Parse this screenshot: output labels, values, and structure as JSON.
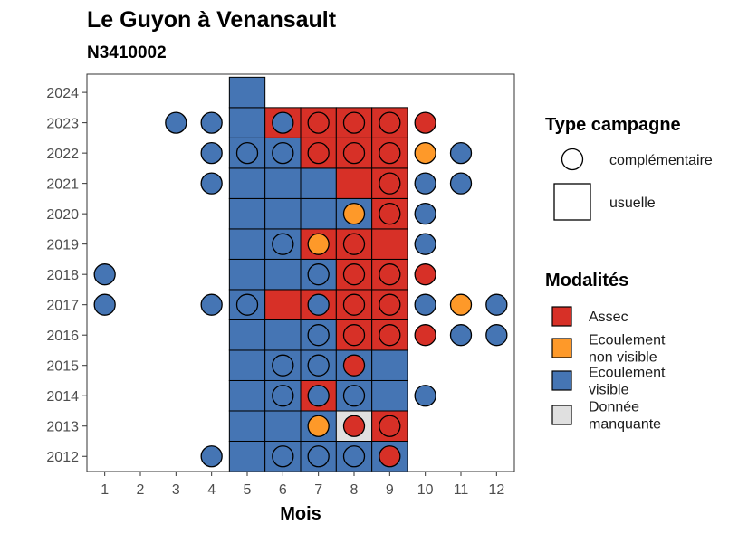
{
  "chart_data": {
    "type": "heatmap",
    "title": "Le Guyon à Venansault",
    "subtitle": "N3410002",
    "xlabel": "Mois",
    "ylabel": "",
    "x_ticks": [
      "1",
      "2",
      "3",
      "4",
      "5",
      "6",
      "7",
      "8",
      "9",
      "10",
      "11",
      "12"
    ],
    "y_ticks": [
      "2012",
      "2013",
      "2014",
      "2015",
      "2016",
      "2017",
      "2018",
      "2019",
      "2020",
      "2021",
      "2022",
      "2023",
      "2024"
    ],
    "xlim": [
      0.5,
      12.5
    ],
    "ylim": [
      2011.5,
      2024.6
    ],
    "colors": {
      "Assec": "#d73027",
      "Ecoulement non visible": "#fe9929",
      "Ecoulement visible": "#4575b4",
      "Donnée manquante": "#e0e0e0"
    },
    "legend_type": {
      "title": "Type campagne",
      "items": [
        {
          "shape": "circle",
          "label": "complémentaire"
        },
        {
          "shape": "square",
          "label": "usuelle"
        }
      ]
    },
    "legend_mod": {
      "title": "Modalités",
      "items": [
        {
          "key": "Assec",
          "lines": [
            "Assec"
          ]
        },
        {
          "key": "Ecoulement non visible",
          "lines": [
            "Ecoulement",
            "non visible"
          ]
        },
        {
          "key": "Ecoulement visible",
          "lines": [
            "Ecoulement",
            "visible"
          ]
        },
        {
          "key": "Donnée manquante",
          "lines": [
            "Donnée",
            "manquante"
          ]
        }
      ]
    },
    "usuelle": [
      {
        "year": 2012,
        "month": 5,
        "m": "Ecoulement visible"
      },
      {
        "year": 2012,
        "month": 6,
        "m": "Ecoulement visible"
      },
      {
        "year": 2012,
        "month": 7,
        "m": "Ecoulement visible"
      },
      {
        "year": 2012,
        "month": 8,
        "m": "Ecoulement visible"
      },
      {
        "year": 2012,
        "month": 9,
        "m": "Ecoulement visible"
      },
      {
        "year": 2013,
        "month": 5,
        "m": "Ecoulement visible"
      },
      {
        "year": 2013,
        "month": 6,
        "m": "Ecoulement visible"
      },
      {
        "year": 2013,
        "month": 7,
        "m": "Ecoulement visible"
      },
      {
        "year": 2013,
        "month": 8,
        "m": "Donnée manquante"
      },
      {
        "year": 2013,
        "month": 9,
        "m": "Assec"
      },
      {
        "year": 2014,
        "month": 5,
        "m": "Ecoulement visible"
      },
      {
        "year": 2014,
        "month": 6,
        "m": "Ecoulement visible"
      },
      {
        "year": 2014,
        "month": 7,
        "m": "Assec"
      },
      {
        "year": 2014,
        "month": 8,
        "m": "Ecoulement visible"
      },
      {
        "year": 2014,
        "month": 9,
        "m": "Ecoulement visible"
      },
      {
        "year": 2015,
        "month": 5,
        "m": "Ecoulement visible"
      },
      {
        "year": 2015,
        "month": 6,
        "m": "Ecoulement visible"
      },
      {
        "year": 2015,
        "month": 7,
        "m": "Ecoulement visible"
      },
      {
        "year": 2015,
        "month": 8,
        "m": "Ecoulement visible"
      },
      {
        "year": 2015,
        "month": 9,
        "m": "Ecoulement visible"
      },
      {
        "year": 2016,
        "month": 5,
        "m": "Ecoulement visible"
      },
      {
        "year": 2016,
        "month": 6,
        "m": "Ecoulement visible"
      },
      {
        "year": 2016,
        "month": 7,
        "m": "Ecoulement visible"
      },
      {
        "year": 2016,
        "month": 8,
        "m": "Assec"
      },
      {
        "year": 2016,
        "month": 9,
        "m": "Assec"
      },
      {
        "year": 2017,
        "month": 5,
        "m": "Ecoulement visible"
      },
      {
        "year": 2017,
        "month": 6,
        "m": "Assec"
      },
      {
        "year": 2017,
        "month": 7,
        "m": "Assec"
      },
      {
        "year": 2017,
        "month": 8,
        "m": "Assec"
      },
      {
        "year": 2017,
        "month": 9,
        "m": "Assec"
      },
      {
        "year": 2018,
        "month": 5,
        "m": "Ecoulement visible"
      },
      {
        "year": 2018,
        "month": 6,
        "m": "Ecoulement visible"
      },
      {
        "year": 2018,
        "month": 7,
        "m": "Ecoulement visible"
      },
      {
        "year": 2018,
        "month": 8,
        "m": "Assec"
      },
      {
        "year": 2018,
        "month": 9,
        "m": "Assec"
      },
      {
        "year": 2019,
        "month": 5,
        "m": "Ecoulement visible"
      },
      {
        "year": 2019,
        "month": 6,
        "m": "Ecoulement visible"
      },
      {
        "year": 2019,
        "month": 7,
        "m": "Assec"
      },
      {
        "year": 2019,
        "month": 8,
        "m": "Assec"
      },
      {
        "year": 2019,
        "month": 9,
        "m": "Assec"
      },
      {
        "year": 2020,
        "month": 5,
        "m": "Ecoulement visible"
      },
      {
        "year": 2020,
        "month": 6,
        "m": "Ecoulement visible"
      },
      {
        "year": 2020,
        "month": 7,
        "m": "Ecoulement visible"
      },
      {
        "year": 2020,
        "month": 8,
        "m": "Ecoulement visible"
      },
      {
        "year": 2020,
        "month": 9,
        "m": "Assec"
      },
      {
        "year": 2021,
        "month": 5,
        "m": "Ecoulement visible"
      },
      {
        "year": 2021,
        "month": 6,
        "m": "Ecoulement visible"
      },
      {
        "year": 2021,
        "month": 7,
        "m": "Ecoulement visible"
      },
      {
        "year": 2021,
        "month": 8,
        "m": "Assec"
      },
      {
        "year": 2021,
        "month": 9,
        "m": "Assec"
      },
      {
        "year": 2022,
        "month": 5,
        "m": "Ecoulement visible"
      },
      {
        "year": 2022,
        "month": 6,
        "m": "Ecoulement visible"
      },
      {
        "year": 2022,
        "month": 7,
        "m": "Assec"
      },
      {
        "year": 2022,
        "month": 8,
        "m": "Assec"
      },
      {
        "year": 2022,
        "month": 9,
        "m": "Assec"
      },
      {
        "year": 2023,
        "month": 5,
        "m": "Ecoulement visible"
      },
      {
        "year": 2023,
        "month": 6,
        "m": "Assec"
      },
      {
        "year": 2023,
        "month": 7,
        "m": "Assec"
      },
      {
        "year": 2023,
        "month": 8,
        "m": "Assec"
      },
      {
        "year": 2023,
        "month": 9,
        "m": "Assec"
      },
      {
        "year": 2024,
        "month": 5,
        "m": "Ecoulement visible"
      }
    ],
    "complementaire": [
      {
        "year": 2012,
        "month": 4,
        "m": "Ecoulement visible"
      },
      {
        "year": 2012,
        "month": 6,
        "m": "Ecoulement visible"
      },
      {
        "year": 2012,
        "month": 7,
        "m": "Ecoulement visible"
      },
      {
        "year": 2012,
        "month": 8,
        "m": "Ecoulement visible"
      },
      {
        "year": 2012,
        "month": 9,
        "m": "Assec"
      },
      {
        "year": 2013,
        "month": 7,
        "m": "Ecoulement non visible"
      },
      {
        "year": 2013,
        "month": 8,
        "m": "Assec"
      },
      {
        "year": 2013,
        "month": 9,
        "m": "Assec"
      },
      {
        "year": 2014,
        "month": 6,
        "m": "Ecoulement visible"
      },
      {
        "year": 2014,
        "month": 7,
        "m": "Ecoulement visible"
      },
      {
        "year": 2014,
        "month": 8,
        "m": "Ecoulement visible"
      },
      {
        "year": 2014,
        "month": 10,
        "m": "Ecoulement visible"
      },
      {
        "year": 2015,
        "month": 6,
        "m": "Ecoulement visible"
      },
      {
        "year": 2015,
        "month": 7,
        "m": "Ecoulement visible"
      },
      {
        "year": 2015,
        "month": 8,
        "m": "Assec"
      },
      {
        "year": 2016,
        "month": 7,
        "m": "Ecoulement visible"
      },
      {
        "year": 2016,
        "month": 8,
        "m": "Assec"
      },
      {
        "year": 2016,
        "month": 9,
        "m": "Assec"
      },
      {
        "year": 2016,
        "month": 10,
        "m": "Assec"
      },
      {
        "year": 2016,
        "month": 11,
        "m": "Ecoulement visible"
      },
      {
        "year": 2016,
        "month": 12,
        "m": "Ecoulement visible"
      },
      {
        "year": 2017,
        "month": 1,
        "m": "Ecoulement visible"
      },
      {
        "year": 2017,
        "month": 4,
        "m": "Ecoulement visible"
      },
      {
        "year": 2017,
        "month": 5,
        "m": "Ecoulement visible"
      },
      {
        "year": 2017,
        "month": 7,
        "m": "Ecoulement visible"
      },
      {
        "year": 2017,
        "month": 8,
        "m": "Assec"
      },
      {
        "year": 2017,
        "month": 9,
        "m": "Assec"
      },
      {
        "year": 2017,
        "month": 10,
        "m": "Ecoulement visible"
      },
      {
        "year": 2017,
        "month": 11,
        "m": "Ecoulement non visible"
      },
      {
        "year": 2017,
        "month": 12,
        "m": "Ecoulement visible"
      },
      {
        "year": 2018,
        "month": 1,
        "m": "Ecoulement visible"
      },
      {
        "year": 2018,
        "month": 7,
        "m": "Ecoulement visible"
      },
      {
        "year": 2018,
        "month": 8,
        "m": "Assec"
      },
      {
        "year": 2018,
        "month": 9,
        "m": "Assec"
      },
      {
        "year": 2018,
        "month": 10,
        "m": "Assec"
      },
      {
        "year": 2019,
        "month": 6,
        "m": "Ecoulement visible"
      },
      {
        "year": 2019,
        "month": 7,
        "m": "Ecoulement non visible"
      },
      {
        "year": 2019,
        "month": 8,
        "m": "Assec"
      },
      {
        "year": 2019,
        "month": 10,
        "m": "Ecoulement visible"
      },
      {
        "year": 2020,
        "month": 8,
        "m": "Ecoulement non visible"
      },
      {
        "year": 2020,
        "month": 9,
        "m": "Assec"
      },
      {
        "year": 2020,
        "month": 10,
        "m": "Ecoulement visible"
      },
      {
        "year": 2021,
        "month": 4,
        "m": "Ecoulement visible"
      },
      {
        "year": 2021,
        "month": 9,
        "m": "Assec"
      },
      {
        "year": 2021,
        "month": 10,
        "m": "Ecoulement visible"
      },
      {
        "year": 2021,
        "month": 11,
        "m": "Ecoulement visible"
      },
      {
        "year": 2022,
        "month": 4,
        "m": "Ecoulement visible"
      },
      {
        "year": 2022,
        "month": 5,
        "m": "Ecoulement visible"
      },
      {
        "year": 2022,
        "month": 6,
        "m": "Ecoulement visible"
      },
      {
        "year": 2022,
        "month": 7,
        "m": "Assec"
      },
      {
        "year": 2022,
        "month": 8,
        "m": "Assec"
      },
      {
        "year": 2022,
        "month": 9,
        "m": "Assec"
      },
      {
        "year": 2022,
        "month": 10,
        "m": "Ecoulement non visible"
      },
      {
        "year": 2022,
        "month": 11,
        "m": "Ecoulement visible"
      },
      {
        "year": 2023,
        "month": 3,
        "m": "Ecoulement visible"
      },
      {
        "year": 2023,
        "month": 4,
        "m": "Ecoulement visible"
      },
      {
        "year": 2023,
        "month": 6,
        "m": "Ecoulement visible"
      },
      {
        "year": 2023,
        "month": 7,
        "m": "Assec"
      },
      {
        "year": 2023,
        "month": 8,
        "m": "Assec"
      },
      {
        "year": 2023,
        "month": 9,
        "m": "Assec"
      },
      {
        "year": 2023,
        "month": 10,
        "m": "Assec"
      }
    ]
  }
}
